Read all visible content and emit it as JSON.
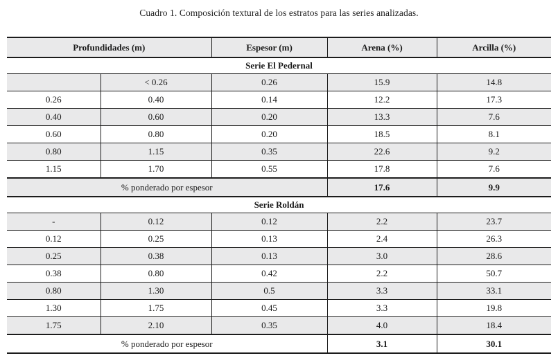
{
  "title": "Cuadro 1. Composición textural de los estratos para las series analizadas.",
  "table": {
    "headers": [
      "Profundidades (m)",
      "Espesor (m)",
      "Arena (%)",
      "Arcilla (%)"
    ],
    "sections": [
      {
        "name": "Serie El Pedernal",
        "rows": [
          [
            "",
            "< 0.26",
            "0.26",
            "15.9",
            "14.8"
          ],
          [
            "0.26",
            "0.40",
            "0.14",
            "12.2",
            "17.3"
          ],
          [
            "0.40",
            "0.60",
            "0.20",
            "13.3",
            "7.6"
          ],
          [
            "0.60",
            "0.80",
            "0.20",
            "18.5",
            "8.1"
          ],
          [
            "0.80",
            "1.15",
            "0.35",
            "22.6",
            "9.2"
          ],
          [
            "1.15",
            "1.70",
            "0.55",
            "17.8",
            "7.6"
          ]
        ],
        "summary": {
          "label": "% ponderado por espesor",
          "arena": "17.6",
          "arcilla": "9.9"
        }
      },
      {
        "name": "Serie Roldán",
        "rows": [
          [
            "-",
            "0.12",
            "0.12",
            "2.2",
            "23.7"
          ],
          [
            "0.12",
            "0.25",
            "0.13",
            "2.4",
            "26.3"
          ],
          [
            "0.25",
            "0.38",
            "0.13",
            "3.0",
            "28.6"
          ],
          [
            "0.38",
            "0.80",
            "0.42",
            "2.2",
            "50.7"
          ],
          [
            "0.80",
            "1.30",
            "0.5",
            "3.3",
            "33.1"
          ],
          [
            "1.30",
            "1.75",
            "0.45",
            "3.3",
            "19.8"
          ],
          [
            "1.75",
            "2.10",
            "0.35",
            "4.0",
            "18.4"
          ]
        ],
        "summary": {
          "label": "% ponderado por espesor",
          "arena": "3.1",
          "arcilla": "30.1"
        }
      }
    ]
  },
  "colors": {
    "row_shade": "#e9e9ea",
    "border": "#1c1c1c",
    "background": "#ffffff"
  }
}
